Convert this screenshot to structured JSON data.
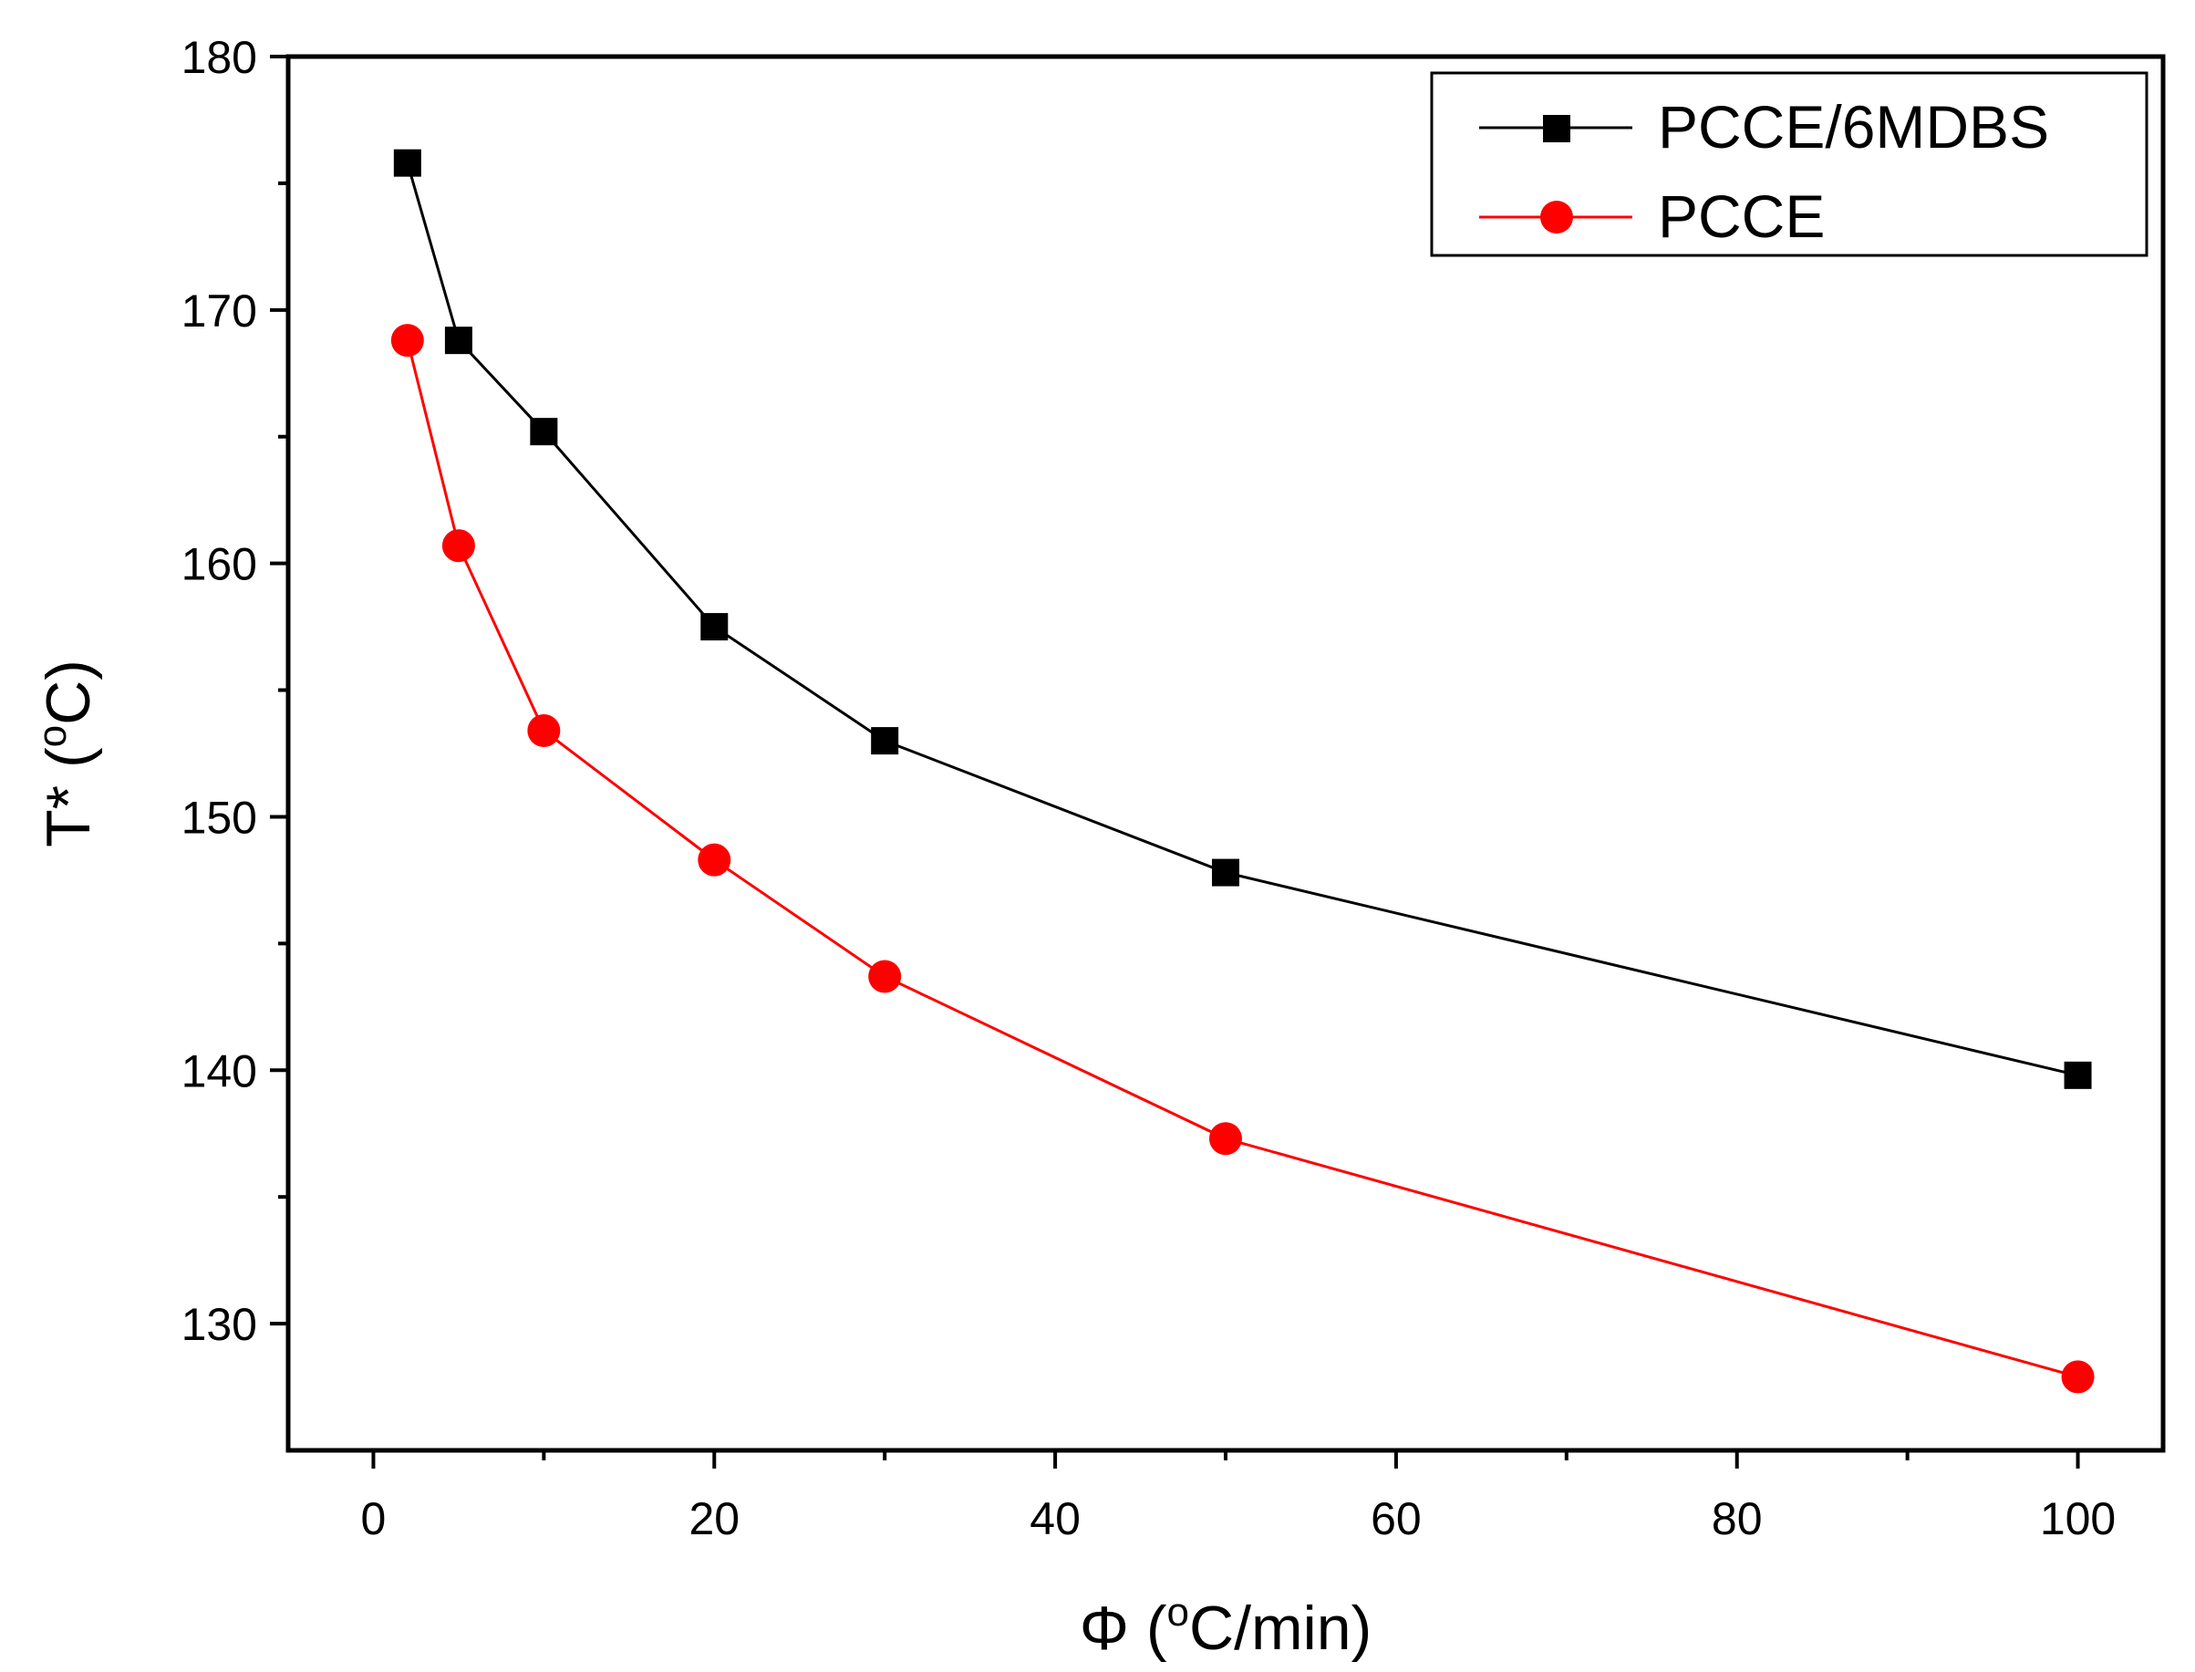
{
  "chart_data": {
    "type": "line",
    "title": "",
    "xlabel": {
      "prefix": "Φ (",
      "sup": "o",
      "suffix": "C/min)"
    },
    "ylabel": {
      "prefix": "T* (",
      "sup": "o",
      "suffix": "C)"
    },
    "xlim": [
      -5,
      105
    ],
    "ylim": [
      125,
      180
    ],
    "x_ticks": [
      0,
      20,
      40,
      60,
      80,
      100
    ],
    "x_minor_ticks": [
      10,
      30,
      50,
      70,
      90
    ],
    "y_ticks": [
      130,
      140,
      150,
      160,
      170,
      180
    ],
    "y_minor_ticks": [
      135,
      145,
      155,
      165,
      175
    ],
    "grid": false,
    "legend_position": "top-right",
    "series": [
      {
        "name": "PCCE/6MDBS",
        "color": "#000000",
        "marker": "square",
        "x": [
          2,
          5,
          10,
          20,
          30,
          50,
          100
        ],
        "y": [
          175.8,
          168.8,
          165.2,
          157.5,
          153.0,
          147.8,
          139.8
        ]
      },
      {
        "name": "PCCE",
        "color": "#ff0000",
        "marker": "circle",
        "x": [
          2,
          5,
          10,
          20,
          30,
          50,
          100
        ],
        "y": [
          168.8,
          160.7,
          153.4,
          148.3,
          143.7,
          137.3,
          127.9
        ]
      }
    ]
  }
}
